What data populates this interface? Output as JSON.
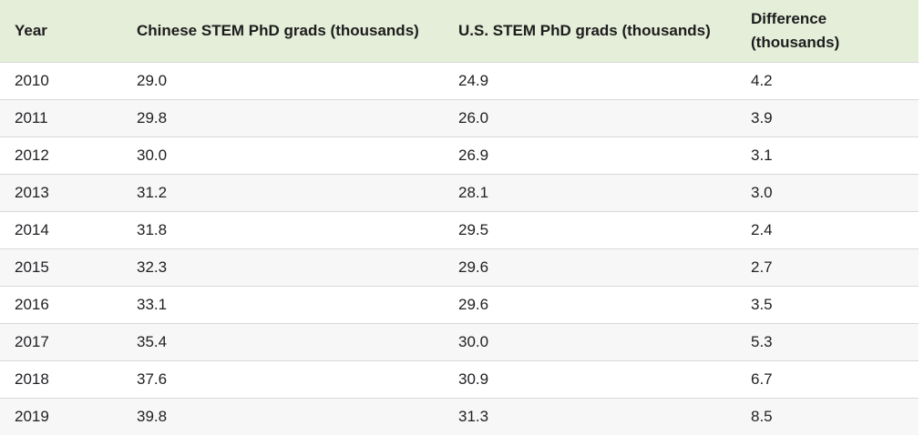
{
  "colors": {
    "header_bg": "#e5eed9",
    "row_alt_bg": "#f7f7f7",
    "divider": "#d8d8d8",
    "text": "#202124",
    "header_text": "#1d1d1d"
  },
  "table": {
    "columns": [
      {
        "label": "Year"
      },
      {
        "label": "Chinese STEM PhD grads (thousands)"
      },
      {
        "label": "U.S. STEM PhD grads (thousands)"
      },
      {
        "label": "Difference (thousands)"
      }
    ],
    "rows": [
      [
        "2010",
        "29.0",
        "24.9",
        "4.2"
      ],
      [
        "2011",
        "29.8",
        "26.0",
        "3.9"
      ],
      [
        "2012",
        "30.0",
        "26.9",
        "3.1"
      ],
      [
        "2013",
        "31.2",
        "28.1",
        "3.0"
      ],
      [
        "2014",
        "31.8",
        "29.5",
        "2.4"
      ],
      [
        "2015",
        "32.3",
        "29.6",
        "2.7"
      ],
      [
        "2016",
        "33.1",
        "29.6",
        "3.5"
      ],
      [
        "2017",
        "35.4",
        "30.0",
        "5.3"
      ],
      [
        "2018",
        "37.6",
        "30.9",
        "6.7"
      ],
      [
        "2019",
        "39.8",
        "31.3",
        "8.5"
      ]
    ]
  },
  "chart_data": {
    "type": "table",
    "categories": [
      2010,
      2011,
      2012,
      2013,
      2014,
      2015,
      2016,
      2017,
      2018,
      2019
    ],
    "series": [
      {
        "name": "Chinese STEM PhD grads (thousands)",
        "values": [
          29.0,
          29.8,
          30.0,
          31.2,
          31.8,
          32.3,
          33.1,
          35.4,
          37.6,
          39.8
        ]
      },
      {
        "name": "U.S. STEM PhD grads (thousands)",
        "values": [
          24.9,
          26.0,
          26.9,
          28.1,
          29.5,
          29.6,
          29.6,
          30.0,
          30.9,
          31.3
        ]
      },
      {
        "name": "Difference (thousands)",
        "values": [
          4.2,
          3.9,
          3.1,
          3.0,
          2.4,
          2.7,
          3.5,
          5.3,
          6.7,
          8.5
        ]
      }
    ],
    "title": "",
    "xlabel": "Year",
    "ylabel": "STEM PhD grads (thousands)"
  }
}
